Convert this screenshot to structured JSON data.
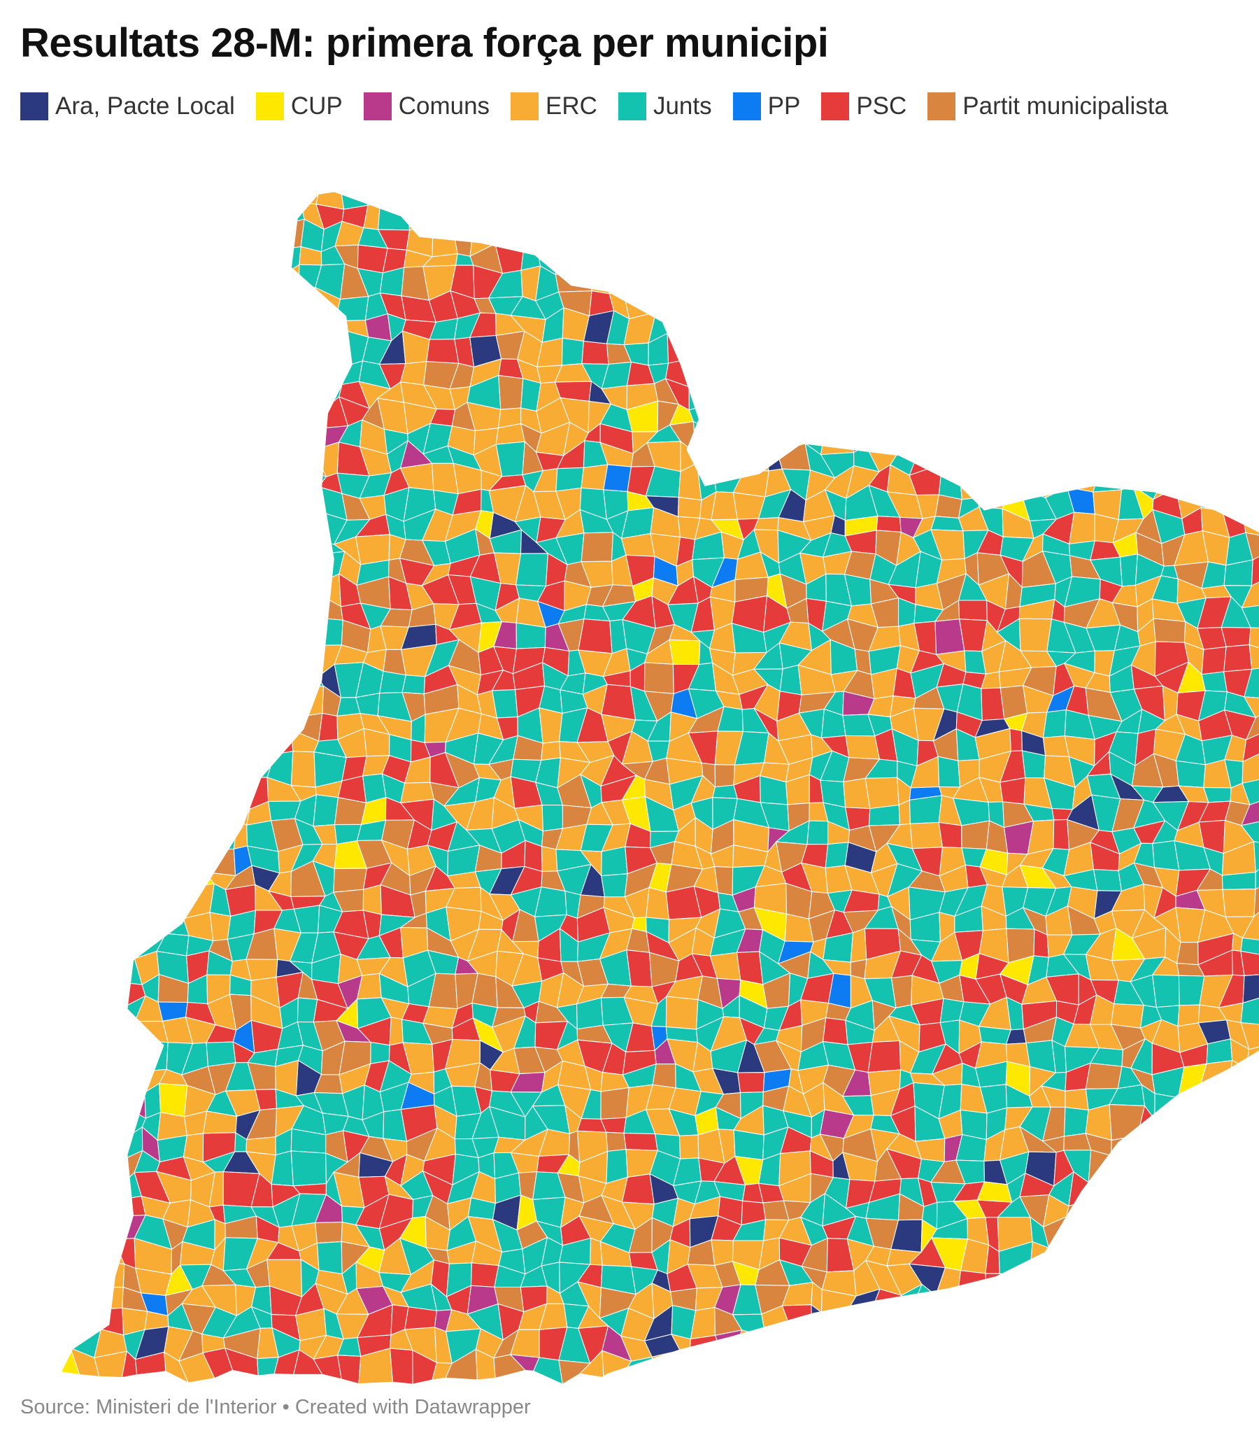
{
  "title": "Resultats 28-M: primera força per municipi",
  "legend": [
    {
      "name": "Ara, Pacte Local",
      "color": "#2b3a7e"
    },
    {
      "name": "CUP",
      "color": "#ffe800"
    },
    {
      "name": "Comuns",
      "color": "#b93a8a"
    },
    {
      "name": "ERC",
      "color": "#f9ac33"
    },
    {
      "name": "Junts",
      "color": "#14c2b0"
    },
    {
      "name": "PP",
      "color": "#0d7cf2"
    },
    {
      "name": "PSC",
      "color": "#e53b3b"
    },
    {
      "name": "Partit municipalista",
      "color": "#d9843f"
    }
  ],
  "source": "Source: Ministeri de l'Interior • Created with Datawrapper"
}
